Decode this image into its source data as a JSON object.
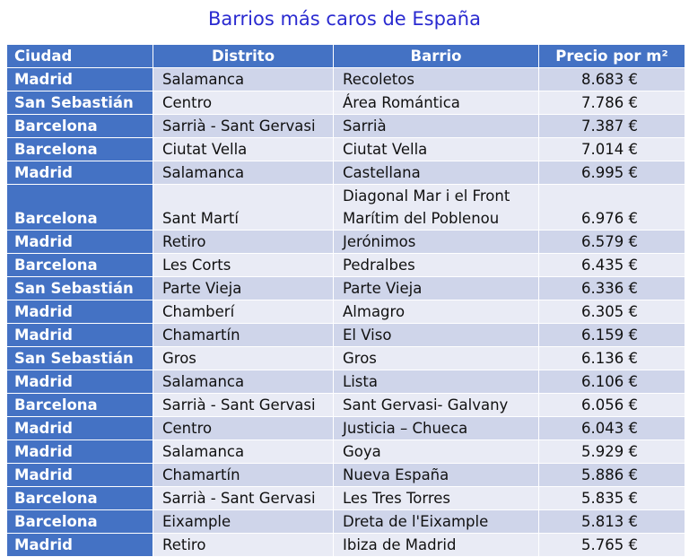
{
  "title": "Barrios más caros de España",
  "headers": {
    "ciudad": "Ciudad",
    "distrito": "Distrito",
    "barrio": "Barrio",
    "precio": "Precio por m²"
  },
  "rows": [
    {
      "ciudad": "Madrid",
      "distrito": "Salamanca",
      "barrio": [
        "Recoletos"
      ],
      "precio": "8.683 €"
    },
    {
      "ciudad": "San Sebastián",
      "distrito": "Centro",
      "barrio": [
        "Área Romántica"
      ],
      "precio": "7.786 €"
    },
    {
      "ciudad": "Barcelona",
      "distrito": "Sarrià - Sant Gervasi",
      "barrio": [
        "Sarrià"
      ],
      "precio": "7.387 €"
    },
    {
      "ciudad": "Barcelona",
      "distrito": "Ciutat Vella",
      "barrio": [
        "Ciutat Vella"
      ],
      "precio": "7.014 €"
    },
    {
      "ciudad": "Madrid",
      "distrito": "Salamanca",
      "barrio": [
        "Castellana"
      ],
      "precio": "6.995 €"
    },
    {
      "ciudad": "Barcelona",
      "distrito": "Sant Martí",
      "barrio": [
        "Diagonal Mar i el Front",
        "Marítim del Poblenou"
      ],
      "precio": "6.976 €"
    },
    {
      "ciudad": "Madrid",
      "distrito": "Retiro",
      "barrio": [
        "Jerónimos"
      ],
      "precio": "6.579 €"
    },
    {
      "ciudad": "Barcelona",
      "distrito": "Les Corts",
      "barrio": [
        "Pedralbes"
      ],
      "precio": "6.435 €"
    },
    {
      "ciudad": "San Sebastián",
      "distrito": "Parte Vieja",
      "barrio": [
        "Parte Vieja"
      ],
      "precio": "6.336 €"
    },
    {
      "ciudad": "Madrid",
      "distrito": "Chamberí",
      "barrio": [
        "Almagro"
      ],
      "precio": "6.305 €"
    },
    {
      "ciudad": "Madrid",
      "distrito": "Chamartín",
      "barrio": [
        "El Viso"
      ],
      "precio": "6.159 €"
    },
    {
      "ciudad": "San Sebastián",
      "distrito": "Gros",
      "barrio": [
        "Gros"
      ],
      "precio": "6.136 €"
    },
    {
      "ciudad": "Madrid",
      "distrito": "Salamanca",
      "barrio": [
        "Lista"
      ],
      "precio": "6.106 €"
    },
    {
      "ciudad": "Barcelona",
      "distrito": "Sarrià - Sant Gervasi",
      "barrio": [
        "Sant Gervasi- Galvany"
      ],
      "precio": "6.056 €"
    },
    {
      "ciudad": "Madrid",
      "distrito": "Centro",
      "barrio": [
        "Justicia – Chueca"
      ],
      "precio": "6.043 €"
    },
    {
      "ciudad": "Madrid",
      "distrito": "Salamanca",
      "barrio": [
        "Goya"
      ],
      "precio": "5.929 €"
    },
    {
      "ciudad": "Madrid",
      "distrito": "Chamartín",
      "barrio": [
        "Nueva España"
      ],
      "precio": "5.886 €"
    },
    {
      "ciudad": "Barcelona",
      "distrito": "Sarrià - Sant Gervasi",
      "barrio": [
        "Les Tres Torres"
      ],
      "precio": "5.835 €"
    },
    {
      "ciudad": "Barcelona",
      "distrito": "Eixample",
      "barrio": [
        "Dreta de l'Eixample"
      ],
      "precio": "5.813 €"
    },
    {
      "ciudad": "Madrid",
      "distrito": "Retiro",
      "barrio": [
        "Ibiza de Madrid"
      ],
      "precio": "5.765 €"
    }
  ],
  "colors": {
    "title": "#2a2ad0",
    "header_bg": "#4472c4",
    "row_band_dark": "#cfd5ea",
    "row_band_light": "#e9ebf5"
  }
}
